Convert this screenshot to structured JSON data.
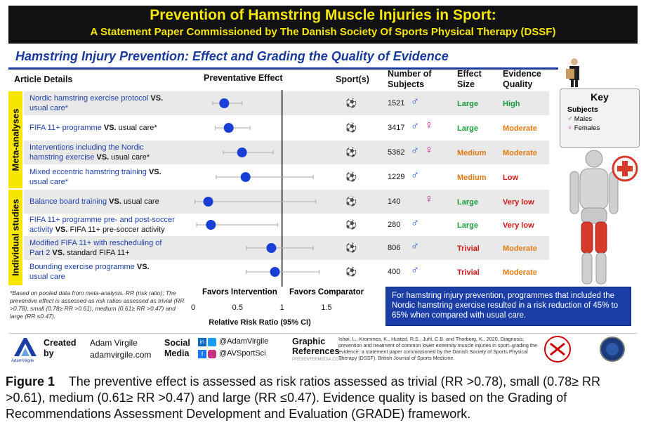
{
  "header": {
    "title": "Prevention of Hamstring Muscle Injuries in Sport:",
    "subtitle": "A Statement Paper Commissioned by The Danish Society Of Sports Physical Therapy (DSSF)"
  },
  "section_title": "Hamstring Injury Prevention: Effect and Grading the Quality of Evidence",
  "columns": {
    "article": "Article Details",
    "effect": "Preventative Effect",
    "sport": "Sport(s)",
    "subjects": "Number of Subjects",
    "size": "Effect Size",
    "quality": "Evidence Quality"
  },
  "groups": {
    "meta": "Meta-analyses",
    "individual": "Individual studies"
  },
  "rows": [
    {
      "line1": "Nordic hamstring exercise protocol ",
      "vs": "VS.",
      "line2": "usual care*",
      "n": "1521",
      "male": true,
      "female": false,
      "size": "Large",
      "quality": "High"
    },
    {
      "line1": "FIFA 11+ programme ",
      "vs": "VS.",
      "tail": " usual care*",
      "line2": "",
      "n": "3417",
      "male": true,
      "female": true,
      "size": "Large",
      "quality": "Moderate"
    },
    {
      "line1": "Interventions including the Nordic",
      "line2a": "hamstring exercise ",
      "vs": "VS.",
      "tail": " usual care*",
      "n": "5362",
      "male": true,
      "female": true,
      "size": "Medium",
      "quality": "Moderate"
    },
    {
      "line1": "Mixed eccentric hamstring training ",
      "vs": "VS.",
      "line2": "usual care*",
      "n": "1229",
      "male": true,
      "female": false,
      "size": "Medium",
      "quality": "Low"
    },
    {
      "line1": "Balance board training ",
      "vs": "VS.",
      "tail": " usual care",
      "line2": "",
      "n": "140",
      "male": false,
      "female": true,
      "size": "Large",
      "quality": "Very low"
    },
    {
      "line1": "FIFA 11+ programme pre- and post-soccer",
      "line2a": "activity ",
      "vs": "VS.",
      "tail": " FIFA 11+ pre-soccer activity",
      "n": "280",
      "male": true,
      "female": false,
      "size": "Large",
      "quality": "Very low"
    },
    {
      "line1": "Modified FIFA 11+ with rescheduling of",
      "line2a": "Part 2 ",
      "vs": "VS.",
      "tail": " standard FIFA 11+",
      "n": "806",
      "male": true,
      "female": false,
      "size": "Trivial",
      "quality": "Moderate"
    },
    {
      "line1": "Bounding exercise programme ",
      "vs": "VS.",
      "line2": "usual care",
      "n": "400",
      "male": true,
      "female": false,
      "size": "Trivial",
      "quality": "Moderate"
    }
  ],
  "colors": {
    "large": "#1a9a3a",
    "medium": "#e07a10",
    "trivial": "#d01818",
    "high": "#1a9a3a",
    "moderate": "#e07a10",
    "low": "#d01818",
    "very low": "#d01818",
    "point": "#1a3fd6"
  },
  "chart_data": {
    "type": "scatter",
    "xlabel": "Relative Risk Ratio (95% CI)",
    "x_ticks": [
      "0",
      "0.5",
      "1",
      "1.5"
    ],
    "xlim": [
      0,
      1.5
    ],
    "points": [
      {
        "x": 0.35,
        "lo": 0.22,
        "hi": 0.55
      },
      {
        "x": 0.4,
        "lo": 0.25,
        "hi": 0.64
      },
      {
        "x": 0.55,
        "lo": 0.34,
        "hi": 0.9
      },
      {
        "x": 0.59,
        "lo": 0.26,
        "hi": 1.35
      },
      {
        "x": 0.17,
        "lo": 0.02,
        "hi": 1.38
      },
      {
        "x": 0.2,
        "lo": 0.04,
        "hi": 0.95
      },
      {
        "x": 0.88,
        "lo": 0.6,
        "hi": 1.35
      },
      {
        "x": 0.92,
        "lo": 0.6,
        "hi": 1.42
      }
    ],
    "annotations": {
      "left": "Favors Intervention",
      "right": "Favors Comparator"
    }
  },
  "footnote": "*Based on pooled data from meta-analysis. RR (risk ratio); The preventive effect is assessed as risk ratios assessed as trivial (RR >0.78), small (0.78≥ RR >0.61), medium (0.61≥ RR >0.47) and large (RR ≤0.47).",
  "callout": "For hamstring injury prevention, programmes that included the Nordic hamstring exercise resulted in a risk reduction of 45% to 65% when compared with usual care.",
  "key": {
    "title": "Key",
    "subjects": "Subjects",
    "males": "Males",
    "females": "Females"
  },
  "footer": {
    "logo": "AdamVirgile",
    "created_by": "Created by",
    "author": "Adam Virgile",
    "site": "adamvirgile.com",
    "social_label": "Social Media",
    "handle1": "@AdamVirgile",
    "handle2": "@AVSportSci",
    "graphic_label": "Graphic References",
    "presenter": "PRESENTERMEDIA.COM",
    "citation": "Ishøi, L., Krommes, K., Husted, R.S., Juhl, C.B. and Thorborg, K., 2020. Diagnosis, prevention and treatment of common lower extremity muscle injuries in sport–grading the evidence: a statement paper commissioned by the Danish Society of Sports Physical Therapy (DSSF). British Journal of Sports Medicine."
  },
  "caption": {
    "label": "Figure 1",
    "text": "The preventive effect is assessed as risk ratios assessed as trivial (RR >0.78), small (0.78≥ RR >0.61), medium (0.61≥ RR >0.47) and large (RR ≤0.47). Evidence quality is based on the Grading of Recommendations Assessment Development and Evaluation (GRADE) framework."
  }
}
